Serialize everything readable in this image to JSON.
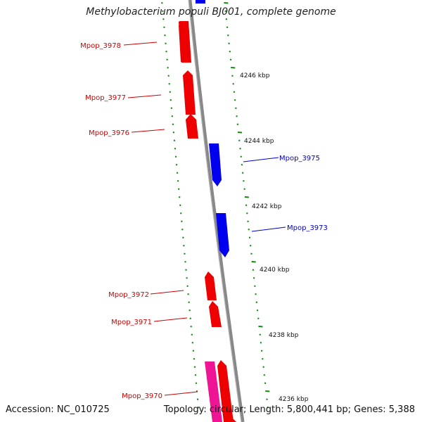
{
  "title": "Methylobacterium populi BJ001, complete genome",
  "footer": {
    "accession": "Accession: NC_010725",
    "topology": "Topology: circular; Length: 5,800,441 bp; Genes: 5,388"
  },
  "colors": {
    "backbone": "#888888",
    "tick": "#118811",
    "forward_gene": "#0000ee",
    "reverse_gene": "#ee0000",
    "other_feature": "#ee1493",
    "label_forward": "#0000cc",
    "label_reverse": "#cc0000"
  },
  "kbp_labels": [
    "4246 kbp",
    "4244 kbp",
    "4242 kbp",
    "4240 kbp",
    "4238 kbp",
    "4236 kbp"
  ],
  "genes": [
    {
      "label": "Mpop_3978",
      "strand": "reverse"
    },
    {
      "label": "Mpop_3977",
      "strand": "reverse"
    },
    {
      "label": "Mpop_3976",
      "strand": "reverse"
    },
    {
      "label": "Mpop_3975",
      "strand": "forward"
    },
    {
      "label": "Mpop_3973",
      "strand": "forward"
    },
    {
      "label": "Mpop_3972",
      "strand": "reverse"
    },
    {
      "label": "Mpop_3971",
      "strand": "reverse"
    },
    {
      "label": "Mpop_3970",
      "strand": "reverse"
    }
  ]
}
